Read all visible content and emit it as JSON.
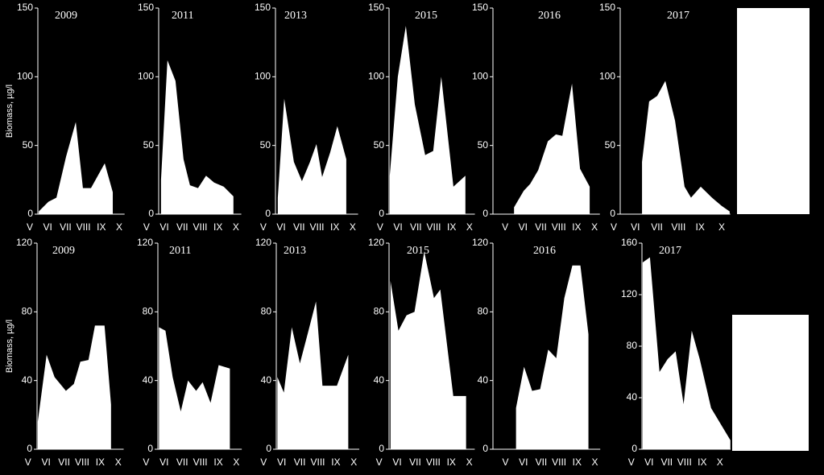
{
  "chart_data": [
    {
      "type": "area",
      "title": "2009",
      "ylabel": "Biomass, µg/l",
      "color": "#ffffff",
      "x": [
        5.5,
        6.04,
        6.49,
        7.03,
        7.57,
        7.97,
        8.42,
        9.19,
        9.64
      ],
      "values": [
        2,
        9,
        12,
        42,
        67,
        19,
        19,
        37,
        16
      ],
      "xlim": [
        5.45,
        10.3
      ],
      "ylim": [
        0,
        150
      ],
      "yticks": [
        0,
        50,
        100,
        150
      ],
      "xticks": [
        {
          "value": 5,
          "label": "V"
        },
        {
          "value": 6,
          "label": "VI"
        },
        {
          "value": 7,
          "label": "VII"
        },
        {
          "value": 8,
          "label": "VIII"
        },
        {
          "value": 9,
          "label": "IX"
        },
        {
          "value": 10,
          "label": "X"
        }
      ]
    },
    {
      "type": "area",
      "title": "2011",
      "color": "#ffffff",
      "x": [
        5.81,
        6.17,
        6.62,
        7.07,
        7.43,
        7.88,
        8.33,
        8.78,
        9.32,
        9.86
      ],
      "values": [
        25,
        112,
        97,
        40,
        21,
        19,
        28,
        23,
        20,
        13
      ],
      "xlim": [
        5.68,
        10.3
      ],
      "ylim": [
        0,
        150
      ],
      "yticks": [
        0,
        50,
        100,
        150
      ],
      "xticks": [
        {
          "value": 5,
          "label": "V"
        },
        {
          "value": 6,
          "label": "VI"
        },
        {
          "value": 7,
          "label": "VII"
        },
        {
          "value": 8,
          "label": "VIII"
        },
        {
          "value": 9,
          "label": "IX"
        },
        {
          "value": 10,
          "label": "X"
        }
      ]
    },
    {
      "type": "area",
      "title": "2013",
      "color": "#ffffff",
      "x": [
        5.81,
        6.17,
        6.71,
        7.16,
        7.61,
        7.97,
        8.29,
        8.74,
        9.14,
        9.64
      ],
      "values": [
        12,
        84,
        38,
        24,
        38,
        51,
        27,
        45,
        64,
        40
      ],
      "xlim": [
        5.68,
        10.3
      ],
      "ylim": [
        0,
        150
      ],
      "yticks": [
        0,
        50,
        100,
        150
      ],
      "xticks": [
        {
          "value": 5,
          "label": "V"
        },
        {
          "value": 6,
          "label": "VI"
        },
        {
          "value": 7,
          "label": "VII"
        },
        {
          "value": 8,
          "label": "VIII"
        },
        {
          "value": 9,
          "label": "IX"
        },
        {
          "value": 10,
          "label": "X"
        }
      ]
    },
    {
      "type": "area",
      "title": "2015",
      "color": "#ffffff",
      "x": [
        5.54,
        5.99,
        6.44,
        6.94,
        7.52,
        7.97,
        8.42,
        9.1,
        9.77
      ],
      "values": [
        28,
        100,
        137,
        80,
        43,
        46,
        100,
        20,
        28
      ],
      "xlim": [
        5.5,
        10.3
      ],
      "ylim": [
        0,
        150
      ],
      "yticks": [
        0,
        50,
        100,
        150
      ],
      "xticks": [
        {
          "value": 5,
          "label": "V"
        },
        {
          "value": 6,
          "label": "VI"
        },
        {
          "value": 7,
          "label": "VII"
        },
        {
          "value": 8,
          "label": "VIII"
        },
        {
          "value": 9,
          "label": "IX"
        },
        {
          "value": 10,
          "label": "X"
        }
      ]
    },
    {
      "type": "area",
      "title": "2016",
      "color": "#ffffff",
      "x": [
        5.5,
        6.04,
        6.4,
        6.85,
        7.39,
        7.84,
        8.2,
        8.74,
        9.19,
        9.73
      ],
      "values": [
        5,
        17,
        22,
        32,
        53,
        58,
        57,
        95,
        33,
        20
      ],
      "xlim": [
        4.32,
        10.3
      ],
      "ylim": [
        0,
        150
      ],
      "yticks": [
        0,
        50,
        100,
        150
      ],
      "xticks": [
        {
          "value": 5,
          "label": "V"
        },
        {
          "value": 6,
          "label": "VI"
        },
        {
          "value": 7,
          "label": "VII"
        },
        {
          "value": 8,
          "label": "VIII"
        },
        {
          "value": 9,
          "label": "IX"
        },
        {
          "value": 10,
          "label": "X"
        }
      ]
    },
    {
      "type": "area",
      "title": "2017",
      "color": "#ffffff",
      "x": [
        6.31,
        6.64,
        7.01,
        7.39,
        7.84,
        8.28,
        8.58,
        9.03,
        9.55,
        10.0,
        10.37
      ],
      "values": [
        38,
        82,
        86,
        97,
        68,
        20,
        12,
        20,
        12,
        6,
        2
      ],
      "xlim": [
        5.3,
        10.4
      ],
      "ylim": [
        0,
        150
      ],
      "yticks": [
        0,
        50,
        100,
        150
      ],
      "xticks": [
        {
          "value": 5,
          "label": "V"
        },
        {
          "value": 6,
          "label": "VI"
        },
        {
          "value": 7,
          "label": "VII"
        },
        {
          "value": 8,
          "label": "VIII"
        },
        {
          "value": 9,
          "label": "IX"
        },
        {
          "value": 10,
          "label": "X"
        }
      ]
    },
    {
      "type": "area",
      "title": "2009",
      "ylabel": "Biomass, µg/l",
      "color": "#ffffff",
      "x": [
        5.54,
        6.03,
        6.47,
        7.1,
        7.54,
        7.9,
        8.35,
        8.71,
        9.24,
        9.6
      ],
      "values": [
        16,
        55,
        42,
        34,
        38,
        51,
        52,
        72,
        72,
        26
      ],
      "xlim": [
        5.5,
        10.3
      ],
      "ylim": [
        0,
        120
      ],
      "yticks": [
        0,
        40,
        80,
        120
      ],
      "xticks": [
        {
          "value": 5,
          "label": "V"
        },
        {
          "value": 6,
          "label": "VI"
        },
        {
          "value": 7,
          "label": "VII"
        },
        {
          "value": 8,
          "label": "VIII"
        },
        {
          "value": 9,
          "label": "IX"
        },
        {
          "value": 10,
          "label": "X"
        }
      ]
    },
    {
      "type": "area",
      "title": "2011",
      "color": "#ffffff",
      "x": [
        5.71,
        6.07,
        6.47,
        6.92,
        7.32,
        7.77,
        8.13,
        8.57,
        9.02,
        9.64
      ],
      "values": [
        71,
        69,
        42,
        22,
        40,
        34,
        39,
        27,
        49,
        47
      ],
      "xlim": [
        5.65,
        10.3
      ],
      "ylim": [
        0,
        120
      ],
      "yticks": [
        0,
        40,
        80,
        120
      ],
      "xticks": [
        {
          "value": 5,
          "label": "V"
        },
        {
          "value": 6,
          "label": "VI"
        },
        {
          "value": 7,
          "label": "VII"
        },
        {
          "value": 8,
          "label": "VIII"
        },
        {
          "value": 9,
          "label": "IX"
        },
        {
          "value": 10,
          "label": "X"
        }
      ]
    },
    {
      "type": "area",
      "title": "2013",
      "color": "#ffffff",
      "x": [
        5.76,
        6.12,
        6.56,
        7.01,
        7.46,
        7.9,
        8.26,
        9.06,
        9.69
      ],
      "values": [
        42,
        33,
        71,
        50,
        68,
        86,
        37,
        37,
        55
      ],
      "xlim": [
        5.7,
        10.3
      ],
      "ylim": [
        0,
        120
      ],
      "yticks": [
        0,
        40,
        80,
        120
      ],
      "xticks": [
        {
          "value": 5,
          "label": "V"
        },
        {
          "value": 6,
          "label": "VI"
        },
        {
          "value": 7,
          "label": "VII"
        },
        {
          "value": 8,
          "label": "VIII"
        },
        {
          "value": 9,
          "label": "IX"
        },
        {
          "value": 10,
          "label": "X"
        }
      ]
    },
    {
      "type": "area",
      "title": "2015",
      "color": "#ffffff",
      "x": [
        5.63,
        6.07,
        6.52,
        6.96,
        7.5,
        8.04,
        8.39,
        9.11,
        9.82
      ],
      "values": [
        98,
        69,
        78,
        80,
        115,
        88,
        93,
        31,
        31
      ],
      "xlim": [
        5.55,
        10.3
      ],
      "ylim": [
        0,
        120
      ],
      "yticks": [
        0,
        40,
        80,
        120
      ],
      "xticks": [
        {
          "value": 5,
          "label": "V"
        },
        {
          "value": 6,
          "label": "VI"
        },
        {
          "value": 7,
          "label": "VII"
        },
        {
          "value": 8,
          "label": "VIII"
        },
        {
          "value": 9,
          "label": "IX"
        },
        {
          "value": 10,
          "label": "X"
        }
      ]
    },
    {
      "type": "area",
      "title": "2016",
      "color": "#ffffff",
      "x": [
        5.59,
        6.04,
        6.49,
        6.94,
        7.39,
        7.84,
        8.29,
        8.74,
        9.19,
        9.64
      ],
      "values": [
        24,
        48,
        34,
        35,
        58,
        53,
        88,
        107,
        107,
        67
      ],
      "xlim": [
        4.3,
        10.3
      ],
      "ylim": [
        0,
        120
      ],
      "yticks": [
        0,
        40,
        80,
        120
      ],
      "xticks": [
        {
          "value": 5,
          "label": "V"
        },
        {
          "value": 6,
          "label": "VI"
        },
        {
          "value": 7,
          "label": "VII"
        },
        {
          "value": 8,
          "label": "VIII"
        },
        {
          "value": 9,
          "label": "IX"
        },
        {
          "value": 10,
          "label": "X"
        }
      ]
    },
    {
      "type": "area",
      "title": "2017",
      "color": "#ffffff",
      "x": [
        5.64,
        6.05,
        6.59,
        7.05,
        7.5,
        7.95,
        8.41,
        8.86,
        9.5,
        10.59
      ],
      "values": [
        145,
        149,
        60,
        70,
        76,
        35,
        92,
        70,
        32,
        7
      ],
      "xlim": [
        5.6,
        10.6
      ],
      "ylim": [
        0,
        160
      ],
      "yticks": [
        0,
        40,
        80,
        120,
        160
      ],
      "xticks": [
        {
          "value": 5,
          "label": "V"
        },
        {
          "value": 6,
          "label": "VI"
        },
        {
          "value": 7,
          "label": "VII"
        },
        {
          "value": 8,
          "label": "VIII"
        },
        {
          "value": 9,
          "label": "IX"
        },
        {
          "value": 10,
          "label": "X"
        }
      ]
    }
  ]
}
